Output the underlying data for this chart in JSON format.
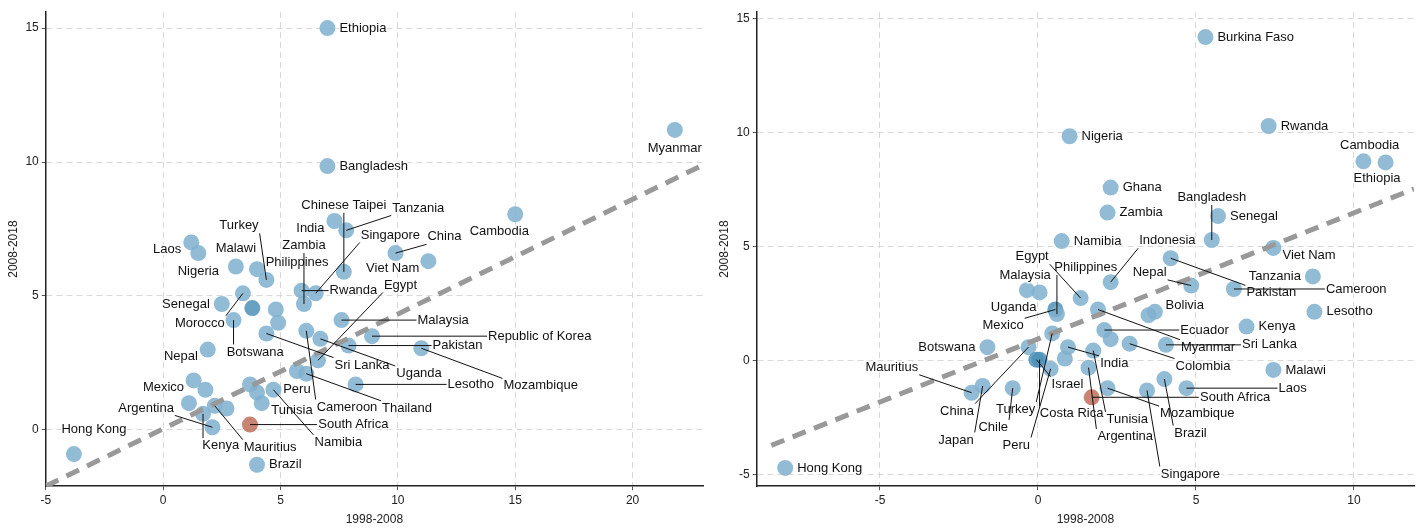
{
  "chart_data": [
    {
      "type": "scatter",
      "xlabel": "1998-2008",
      "ylabel": "2008-2018",
      "xlim": [
        -5,
        23
      ],
      "ylim": [
        -2.1,
        15.6
      ],
      "xticks": [
        -5,
        0,
        5,
        10,
        15,
        20
      ],
      "yticks": [
        0,
        5,
        10,
        15
      ],
      "grid": true,
      "legend": false,
      "series": [
        {
          "marker": "circle",
          "x": [
            -3.8,
            1.2,
            1.5,
            3.1,
            4.0,
            4.4,
            5.9,
            3.4,
            2.5,
            3.8,
            3.0,
            4.8,
            4.9,
            4.4,
            1.9,
            1.3,
            1.8,
            1.1,
            1.7,
            2.2,
            2.7,
            2.1,
            3.7,
            4.0,
            4.2,
            3.7,
            4.0,
            6.5,
            6.0,
            6.1,
            6.7,
            6.6,
            5.7,
            6.1,
            4.7,
            7.6,
            7.7,
            7.9,
            8.2,
            8.9,
            11.0,
            7.3,
            7.8,
            9.9,
            11.3,
            15.0,
            7.0,
            7.0,
            21.8
          ],
          "values": [
            -0.9,
            7.0,
            6.6,
            6.1,
            6.0,
            5.6,
            5.2,
            5.1,
            4.7,
            4.55,
            4.1,
            4.5,
            4.0,
            3.6,
            3.0,
            1.85,
            1.5,
            1.0,
            0.6,
            0.9,
            0.8,
            0.1,
            1.7,
            1.4,
            1.0,
            0.2,
            -1.3,
            5.1,
            4.7,
            3.7,
            3.4,
            2.6,
            2.2,
            2.1,
            1.5,
            4.1,
            5.9,
            3.15,
            1.7,
            3.5,
            3.05,
            7.8,
            7.45,
            6.6,
            6.3,
            8.05,
            15.0,
            9.85,
            11.2
          ],
          "colors": [
            "#7fb0cf",
            "#7fb0cf",
            "#7fb0cf",
            "#7fb0cf",
            "#7fb0cf",
            "#7fb0cf",
            "#7fb0cf",
            "#7fb0cf",
            "#7fb0cf",
            "#4f90b8",
            "#7fb0cf",
            "#7fb0cf",
            "#7fb0cf",
            "#7fb0cf",
            "#7fb0cf",
            "#7fb0cf",
            "#7fb0cf",
            "#7fb0cf",
            "#7fb0cf",
            "#7fb0cf",
            "#7fb0cf",
            "#7fb0cf",
            "#7fb0cf",
            "#7fb0cf",
            "#7fb0cf",
            "#c0705a",
            "#7fb0cf",
            "#7fb0cf",
            "#7fb0cf",
            "#7fb0cf",
            "#7fb0cf",
            "#7fb0cf",
            "#7fb0cf",
            "#7fb0cf",
            "#7fb0cf",
            "#7fb0cf",
            "#7fb0cf",
            "#7fb0cf",
            "#7fb0cf",
            "#7fb0cf",
            "#7fb0cf",
            "#7fb0cf",
            "#7fb0cf",
            "#7fb0cf",
            "#7fb0cf",
            "#7fb0cf",
            "#7fb0cf",
            "#7fb0cf",
            "#7fb0cf"
          ],
          "value_labels": [
            "Hong Kong",
            "Laos",
            "Nigeria",
            "Malawi",
            "Philippines",
            "Turkey",
            "Rwanda",
            "Morocco",
            "Senegal",
            null,
            "Botswana",
            null,
            null,
            "Sri Lanka",
            "Nepal",
            "Mexico",
            null,
            null,
            "Kenya",
            "Mauritius",
            null,
            "Argentina",
            null,
            null,
            "Tunisia",
            "South Africa",
            "Brazil",
            "Singapore",
            "Zambia",
            "Cameroon",
            "Uganda",
            "Egypt",
            "Peru",
            "Thailand",
            "Namibia",
            "Malaysia",
            "Chinese Taipei",
            "Pakistan",
            "Lesotho",
            "Republic of Korea",
            "Mozambique",
            "India",
            "Tanzania",
            "China",
            "Viet Nam",
            "Cambodia",
            "Ethiopia",
            "Bangladesh",
            "Myanmar"
          ]
        },
        {
          "type": "line",
          "x": [
            -5,
            22.9
          ],
          "values": [
            -2.1,
            9.85
          ],
          "color": "#999999",
          "line_style": "dashed",
          "marker": "none"
        }
      ]
    },
    {
      "type": "scatter",
      "xlabel": "1998-2008",
      "ylabel": "2008-2018",
      "xlim": [
        -8.9,
        11.9
      ],
      "ylim": [
        -5.5,
        15.3
      ],
      "xticks": [
        -5,
        0,
        5,
        10
      ],
      "yticks": [
        -5,
        0,
        5,
        10,
        15
      ],
      "grid": true,
      "legend": false,
      "series": [
        {
          "marker": "circle",
          "x": [
            -8.0,
            0.75,
            -0.35,
            0.05,
            0.55,
            0.6,
            0.45,
            -1.6,
            -0.3,
            0.05,
            -0.05,
            0.4,
            -0.8,
            -1.75,
            -2.1,
            0.85,
            0.95,
            2.3,
            2.2,
            2.3,
            1.35,
            1.9,
            2.1,
            2.3,
            1.75,
            1.6,
            1.7,
            2.2,
            2.9,
            3.5,
            3.7,
            4.05,
            4.85,
            4.2,
            5.5,
            5.7,
            7.45,
            6.2,
            8.7,
            8.75,
            6.6,
            7.45,
            3.45,
            4.0,
            4.7,
            5.3,
            1.0,
            7.3,
            10.3,
            11.0
          ],
          "values": [
            -4.7,
            5.25,
            3.1,
            3.0,
            2.25,
            2.05,
            1.2,
            0.6,
            0.6,
            0.05,
            0.05,
            -0.35,
            -1.2,
            -1.1,
            -1.4,
            0.1,
            0.6,
            7.6,
            6.5,
            3.45,
            2.75,
            2.25,
            1.35,
            0.95,
            0.45,
            -0.3,
            -1.6,
            -1.2,
            0.75,
            2.0,
            2.15,
            0.7,
            3.3,
            4.5,
            5.3,
            6.35,
            4.95,
            3.15,
            3.7,
            2.15,
            1.5,
            -0.4,
            -1.3,
            -0.8,
            -1.2,
            14.2,
            9.85,
            10.3,
            8.75,
            8.7
          ],
          "colors": [
            "#7fb0cf",
            "#7fb0cf",
            "#7fb0cf",
            "#7fb0cf",
            "#4f90b8",
            "#7fb0cf",
            "#7fb0cf",
            "#7fb0cf",
            "#7fb0cf",
            "#4f90b8",
            "#4f90b8",
            "#7fb0cf",
            "#7fb0cf",
            "#7fb0cf",
            "#7fb0cf",
            "#7fb0cf",
            "#7fb0cf",
            "#7fb0cf",
            "#7fb0cf",
            "#7fb0cf",
            "#7fb0cf",
            "#7fb0cf",
            "#7fb0cf",
            "#7fb0cf",
            "#7fb0cf",
            "#7fb0cf",
            "#c0705a",
            "#7fb0cf",
            "#7fb0cf",
            "#7fb0cf",
            "#7fb0cf",
            "#7fb0cf",
            "#7fb0cf",
            "#7fb0cf",
            "#7fb0cf",
            "#7fb0cf",
            "#7fb0cf",
            "#7fb0cf",
            "#7fb0cf",
            "#7fb0cf",
            "#7fb0cf",
            "#7fb0cf",
            "#7fb0cf",
            "#7fb0cf",
            "#7fb0cf",
            "#7fb0cf",
            "#7fb0cf",
            "#7fb0cf",
            "#7fb0cf",
            "#7fb0cf"
          ],
          "value_labels": [
            "Hong Kong",
            "Namibia",
            "Uganda",
            "Malaysia",
            "Mexico",
            "Philippines",
            "Turkey",
            "Botswana",
            "China",
            "Costa Rica",
            "Israel",
            "Peru",
            "Chile",
            "Japan",
            "Mauritius",
            null,
            "India",
            "Ghana",
            "Zambia",
            "Indonesia",
            "Egypt",
            "Myanmar",
            "Ecuador",
            null,
            "Tunisia",
            "Argentina",
            "South Africa",
            "Mozambique",
            "Colombia",
            "Bolivia",
            null,
            "Sri Lanka",
            "Nepal",
            "Pakistan",
            "Bangladesh",
            "Senegal",
            "Viet Nam",
            "Cameroon",
            "Tanzania",
            "Lesotho",
            "Kenya",
            "Malawi",
            "Singapore",
            "Brazil",
            "Laos",
            "Burkina Faso",
            "Nigeria",
            "Rwanda",
            "Ethiopia",
            "Cambodia"
          ]
        },
        {
          "type": "line",
          "x": [
            -8.44,
            11.9
          ],
          "values": [
            -3.71,
            7.54
          ],
          "color": "#999999",
          "line_style": "dashed",
          "marker": "none"
        }
      ]
    }
  ]
}
